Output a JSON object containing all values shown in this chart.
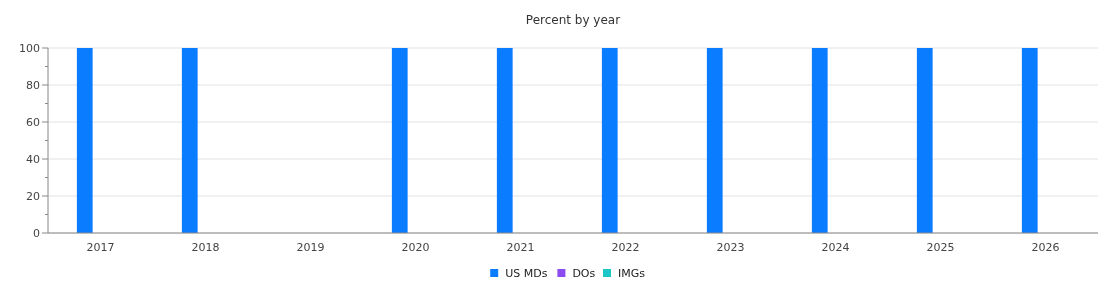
{
  "chart_data": {
    "type": "bar",
    "title": "Percent by year",
    "categories": [
      "2017",
      "2018",
      "2019",
      "2020",
      "2021",
      "2022",
      "2023",
      "2024",
      "2025",
      "2026"
    ],
    "series": [
      {
        "name": "US MDs",
        "color": "#0a7cff",
        "values": [
          100,
          100,
          null,
          100,
          100,
          100,
          100,
          100,
          100,
          100
        ]
      },
      {
        "name": "DOs",
        "color": "#8a4bf0",
        "values": [
          0,
          0,
          null,
          0,
          0,
          0,
          0,
          0,
          0,
          0
        ]
      },
      {
        "name": "IMGs",
        "color": "#1ac6c6",
        "values": [
          0,
          0,
          null,
          0,
          0,
          0,
          0,
          0,
          0,
          0
        ]
      }
    ],
    "ylim": [
      0,
      100
    ],
    "yticks": [
      0,
      {
        "value": 10,
        "label": null
      },
      20,
      {
        "value": 30,
        "label": null
      },
      40,
      {
        "value": 50,
        "label": null
      },
      60,
      {
        "value": 70,
        "label": null
      },
      80,
      {
        "value": 90,
        "label": null
      },
      100
    ],
    "grid": "y",
    "legend": "bottom"
  }
}
